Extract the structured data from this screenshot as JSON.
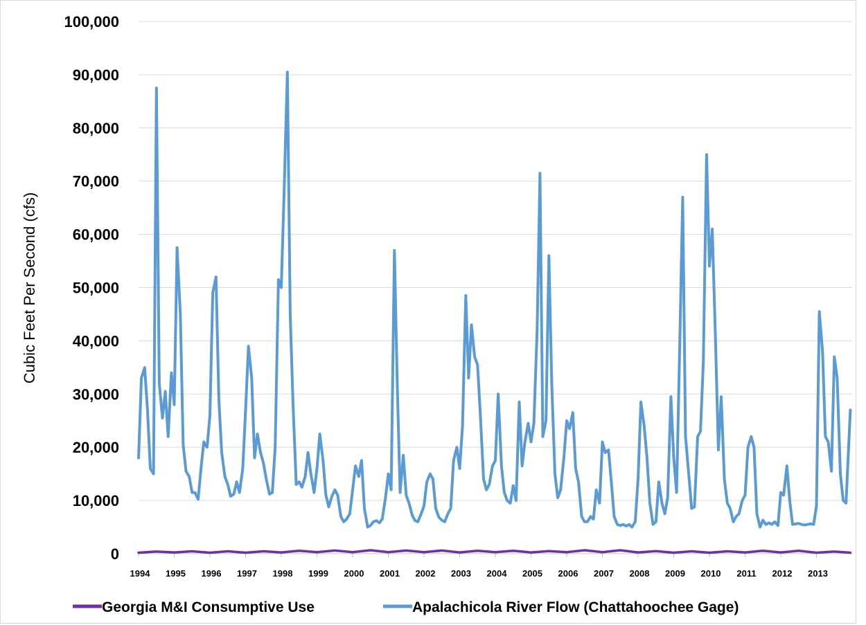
{
  "chart_data": {
    "type": "line",
    "title": "",
    "ylabel": "Cubic Feet Per Second (cfs)",
    "xlabel": "",
    "ylim": [
      0,
      100000
    ],
    "yticks": [
      "0",
      "10,000",
      "20,000",
      "30,000",
      "40,000",
      "50,000",
      "60,000",
      "70,000",
      "80,000",
      "90,000",
      "100,000"
    ],
    "ytick_values": [
      0,
      10000,
      20000,
      30000,
      40000,
      50000,
      60000,
      70000,
      80000,
      90000,
      100000
    ],
    "xticks": [
      "1994",
      "1995",
      "1996",
      "1997",
      "1998",
      "1999",
      "2000",
      "2001",
      "2002",
      "2003",
      "2004",
      "2005",
      "2006",
      "2007",
      "2008",
      "2009",
      "2010",
      "2011",
      "2012",
      "2013"
    ],
    "xlim": [
      1994.0,
      2014.0
    ],
    "grid": true,
    "legend_position": "bottom",
    "series": [
      {
        "name": "Georgia M&I Consumptive Use",
        "color": "#7030a0",
        "points": [
          [
            1994.0,
            200
          ],
          [
            1994.5,
            400
          ],
          [
            1995.0,
            250
          ],
          [
            1995.5,
            450
          ],
          [
            1996.0,
            200
          ],
          [
            1996.5,
            450
          ],
          [
            1997.0,
            200
          ],
          [
            1997.5,
            450
          ],
          [
            1998.0,
            250
          ],
          [
            1998.5,
            550
          ],
          [
            1999.0,
            300
          ],
          [
            1999.5,
            600
          ],
          [
            2000.0,
            300
          ],
          [
            2000.5,
            650
          ],
          [
            2001.0,
            300
          ],
          [
            2001.5,
            600
          ],
          [
            2002.0,
            300
          ],
          [
            2002.5,
            600
          ],
          [
            2003.0,
            250
          ],
          [
            2003.5,
            550
          ],
          [
            2004.0,
            300
          ],
          [
            2004.5,
            550
          ],
          [
            2005.0,
            250
          ],
          [
            2005.5,
            500
          ],
          [
            2006.0,
            300
          ],
          [
            2006.5,
            650
          ],
          [
            2007.0,
            300
          ],
          [
            2007.5,
            650
          ],
          [
            2008.0,
            250
          ],
          [
            2008.5,
            500
          ],
          [
            2009.0,
            200
          ],
          [
            2009.5,
            450
          ],
          [
            2010.0,
            200
          ],
          [
            2010.5,
            450
          ],
          [
            2011.0,
            250
          ],
          [
            2011.5,
            550
          ],
          [
            2012.0,
            250
          ],
          [
            2012.5,
            550
          ],
          [
            2013.0,
            200
          ],
          [
            2013.5,
            400
          ],
          [
            2013.95,
            200
          ]
        ]
      },
      {
        "name": "Apalachicola River Flow (Chattahoochee Gage)",
        "color": "#5b9bd5",
        "points": [
          [
            1994.0,
            18000
          ],
          [
            1994.08,
            33000
          ],
          [
            1994.17,
            35000
          ],
          [
            1994.25,
            27000
          ],
          [
            1994.33,
            16000
          ],
          [
            1994.42,
            15000
          ],
          [
            1994.5,
            87500
          ],
          [
            1994.58,
            32000
          ],
          [
            1994.67,
            25500
          ],
          [
            1994.75,
            30500
          ],
          [
            1994.83,
            22000
          ],
          [
            1994.92,
            34000
          ],
          [
            1995.0,
            28000
          ],
          [
            1995.08,
            57500
          ],
          [
            1995.17,
            45000
          ],
          [
            1995.25,
            20500
          ],
          [
            1995.33,
            15500
          ],
          [
            1995.42,
            14500
          ],
          [
            1995.5,
            11500
          ],
          [
            1995.58,
            11500
          ],
          [
            1995.67,
            10200
          ],
          [
            1995.75,
            16000
          ],
          [
            1995.83,
            21000
          ],
          [
            1995.92,
            20000
          ],
          [
            1996.0,
            26000
          ],
          [
            1996.08,
            49000
          ],
          [
            1996.17,
            52000
          ],
          [
            1996.25,
            29000
          ],
          [
            1996.33,
            19000
          ],
          [
            1996.42,
            14500
          ],
          [
            1996.5,
            13000
          ],
          [
            1996.58,
            10800
          ],
          [
            1996.67,
            11200
          ],
          [
            1996.75,
            13500
          ],
          [
            1996.83,
            11500
          ],
          [
            1996.92,
            16000
          ],
          [
            1997.0,
            27000
          ],
          [
            1997.08,
            39000
          ],
          [
            1997.17,
            33000
          ],
          [
            1997.25,
            18000
          ],
          [
            1997.33,
            22500
          ],
          [
            1997.42,
            19000
          ],
          [
            1997.5,
            17000
          ],
          [
            1997.58,
            14000
          ],
          [
            1997.67,
            11200
          ],
          [
            1997.75,
            11500
          ],
          [
            1997.83,
            20000
          ],
          [
            1997.92,
            51500
          ],
          [
            1998.0,
            50000
          ],
          [
            1998.08,
            68000
          ],
          [
            1998.17,
            90500
          ],
          [
            1998.25,
            45000
          ],
          [
            1998.33,
            28000
          ],
          [
            1998.42,
            13000
          ],
          [
            1998.5,
            13500
          ],
          [
            1998.58,
            12500
          ],
          [
            1998.67,
            14500
          ],
          [
            1998.75,
            19000
          ],
          [
            1998.83,
            15000
          ],
          [
            1998.92,
            11500
          ],
          [
            1999.0,
            16000
          ],
          [
            1999.08,
            22500
          ],
          [
            1999.17,
            17500
          ],
          [
            1999.25,
            11000
          ],
          [
            1999.33,
            8800
          ],
          [
            1999.42,
            10800
          ],
          [
            1999.5,
            12000
          ],
          [
            1999.58,
            11000
          ],
          [
            1999.67,
            7000
          ],
          [
            1999.75,
            6000
          ],
          [
            1999.83,
            6500
          ],
          [
            1999.92,
            7500
          ],
          [
            2000.0,
            12000
          ],
          [
            2000.08,
            16500
          ],
          [
            2000.17,
            14500
          ],
          [
            2000.25,
            17500
          ],
          [
            2000.33,
            8500
          ],
          [
            2000.42,
            5000
          ],
          [
            2000.5,
            5300
          ],
          [
            2000.58,
            6000
          ],
          [
            2000.67,
            6200
          ],
          [
            2000.75,
            5800
          ],
          [
            2000.83,
            6500
          ],
          [
            2000.92,
            10500
          ],
          [
            2001.0,
            15000
          ],
          [
            2001.08,
            12000
          ],
          [
            2001.17,
            57000
          ],
          [
            2001.25,
            32000
          ],
          [
            2001.33,
            11500
          ],
          [
            2001.42,
            18500
          ],
          [
            2001.5,
            11000
          ],
          [
            2001.58,
            9500
          ],
          [
            2001.67,
            7200
          ],
          [
            2001.75,
            6200
          ],
          [
            2001.83,
            6000
          ],
          [
            2001.92,
            7500
          ],
          [
            2002.0,
            9000
          ],
          [
            2002.08,
            13500
          ],
          [
            2002.17,
            15000
          ],
          [
            2002.25,
            14000
          ],
          [
            2002.33,
            8500
          ],
          [
            2002.42,
            6800
          ],
          [
            2002.5,
            6300
          ],
          [
            2002.58,
            6000
          ],
          [
            2002.67,
            7500
          ],
          [
            2002.75,
            8500
          ],
          [
            2002.83,
            17500
          ],
          [
            2002.92,
            20000
          ],
          [
            2003.0,
            16000
          ],
          [
            2003.08,
            24000
          ],
          [
            2003.17,
            48500
          ],
          [
            2003.25,
            33000
          ],
          [
            2003.33,
            43000
          ],
          [
            2003.42,
            37000
          ],
          [
            2003.5,
            35500
          ],
          [
            2003.58,
            26000
          ],
          [
            2003.67,
            14000
          ],
          [
            2003.75,
            12000
          ],
          [
            2003.83,
            13000
          ],
          [
            2003.92,
            16500
          ],
          [
            2004.0,
            17500
          ],
          [
            2004.08,
            30000
          ],
          [
            2004.17,
            16500
          ],
          [
            2004.25,
            11500
          ],
          [
            2004.33,
            10000
          ],
          [
            2004.42,
            9500
          ],
          [
            2004.5,
            12800
          ],
          [
            2004.58,
            10000
          ],
          [
            2004.67,
            28500
          ],
          [
            2004.75,
            16500
          ],
          [
            2004.83,
            21000
          ],
          [
            2004.92,
            24500
          ],
          [
            2005.0,
            21000
          ],
          [
            2005.08,
            24500
          ],
          [
            2005.17,
            42000
          ],
          [
            2005.25,
            71500
          ],
          [
            2005.33,
            22000
          ],
          [
            2005.42,
            25000
          ],
          [
            2005.5,
            56000
          ],
          [
            2005.58,
            32000
          ],
          [
            2005.67,
            15000
          ],
          [
            2005.75,
            10500
          ],
          [
            2005.83,
            12000
          ],
          [
            2005.92,
            18000
          ],
          [
            2006.0,
            25000
          ],
          [
            2006.08,
            23500
          ],
          [
            2006.17,
            26500
          ],
          [
            2006.25,
            16000
          ],
          [
            2006.33,
            13500
          ],
          [
            2006.42,
            7000
          ],
          [
            2006.5,
            6000
          ],
          [
            2006.58,
            6000
          ],
          [
            2006.67,
            7000
          ],
          [
            2006.75,
            6500
          ],
          [
            2006.83,
            12000
          ],
          [
            2006.92,
            9500
          ],
          [
            2007.0,
            21000
          ],
          [
            2007.08,
            19000
          ],
          [
            2007.17,
            19500
          ],
          [
            2007.25,
            13500
          ],
          [
            2007.33,
            7000
          ],
          [
            2007.42,
            5500
          ],
          [
            2007.5,
            5300
          ],
          [
            2007.58,
            5500
          ],
          [
            2007.67,
            5200
          ],
          [
            2007.75,
            5500
          ],
          [
            2007.83,
            5000
          ],
          [
            2007.92,
            6000
          ],
          [
            2008.0,
            14000
          ],
          [
            2008.08,
            28500
          ],
          [
            2008.17,
            24000
          ],
          [
            2008.25,
            18000
          ],
          [
            2008.33,
            9500
          ],
          [
            2008.42,
            5500
          ],
          [
            2008.5,
            6000
          ],
          [
            2008.58,
            13500
          ],
          [
            2008.67,
            9500
          ],
          [
            2008.75,
            7500
          ],
          [
            2008.83,
            10500
          ],
          [
            2008.92,
            29500
          ],
          [
            2009.0,
            18000
          ],
          [
            2009.08,
            11500
          ],
          [
            2009.17,
            40000
          ],
          [
            2009.25,
            67000
          ],
          [
            2009.33,
            22000
          ],
          [
            2009.42,
            15000
          ],
          [
            2009.5,
            8500
          ],
          [
            2009.58,
            8800
          ],
          [
            2009.67,
            22000
          ],
          [
            2009.75,
            23000
          ],
          [
            2009.83,
            36000
          ],
          [
            2009.92,
            75000
          ],
          [
            2010.0,
            54000
          ],
          [
            2010.08,
            61000
          ],
          [
            2010.17,
            40000
          ],
          [
            2010.25,
            19500
          ],
          [
            2010.33,
            29500
          ],
          [
            2010.42,
            14000
          ],
          [
            2010.5,
            9500
          ],
          [
            2010.58,
            8500
          ],
          [
            2010.67,
            6000
          ],
          [
            2010.75,
            7000
          ],
          [
            2010.83,
            7500
          ],
          [
            2010.92,
            10000
          ],
          [
            2011.0,
            11000
          ],
          [
            2011.08,
            20000
          ],
          [
            2011.17,
            22000
          ],
          [
            2011.25,
            20000
          ],
          [
            2011.33,
            7500
          ],
          [
            2011.42,
            5000
          ],
          [
            2011.5,
            6300
          ],
          [
            2011.58,
            5500
          ],
          [
            2011.67,
            5800
          ],
          [
            2011.75,
            5500
          ],
          [
            2011.83,
            6000
          ],
          [
            2011.92,
            5300
          ],
          [
            2012.0,
            11500
          ],
          [
            2012.08,
            11000
          ],
          [
            2012.17,
            16500
          ],
          [
            2012.25,
            10000
          ],
          [
            2012.33,
            5500
          ],
          [
            2012.42,
            5600
          ],
          [
            2012.5,
            5700
          ],
          [
            2012.58,
            5500
          ],
          [
            2012.67,
            5400
          ],
          [
            2012.75,
            5500
          ],
          [
            2012.83,
            5600
          ],
          [
            2012.92,
            5500
          ],
          [
            2013.0,
            9000
          ],
          [
            2013.08,
            45500
          ],
          [
            2013.17,
            38000
          ],
          [
            2013.25,
            22000
          ],
          [
            2013.33,
            21000
          ],
          [
            2013.42,
            15500
          ],
          [
            2013.5,
            37000
          ],
          [
            2013.58,
            33000
          ],
          [
            2013.67,
            15000
          ],
          [
            2013.75,
            10000
          ],
          [
            2013.83,
            9500
          ],
          [
            2013.95,
            27000
          ]
        ]
      }
    ]
  },
  "colors": {
    "grid": "#d9d9d9",
    "axis": "#bfbfbf",
    "frame": "#d9d9d9"
  }
}
